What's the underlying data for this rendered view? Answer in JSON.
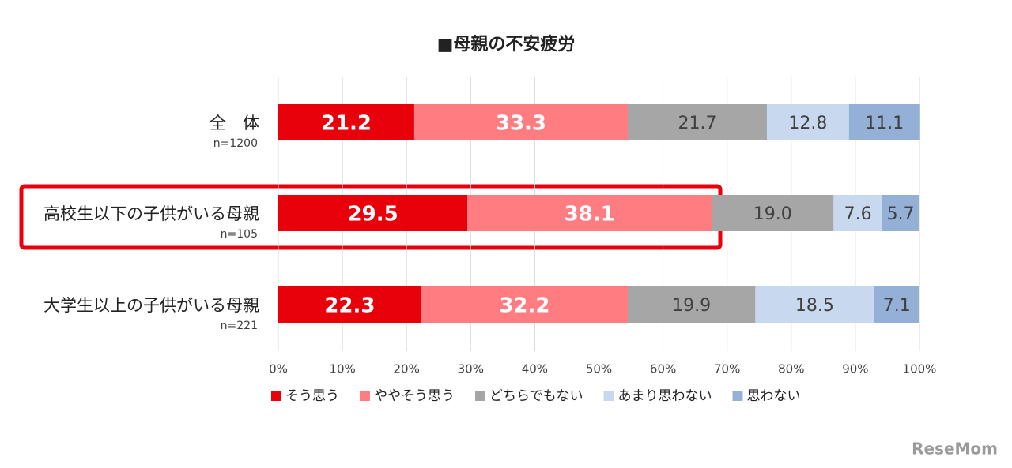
{
  "chart_data": {
    "type": "stacked-bar-horizontal",
    "title": "■母親の不安疲労",
    "categories": [
      "全　体",
      "高校生以下の子供がいる母親",
      "大学生以上の子供がいる母親"
    ],
    "sample_sizes": [
      "n=1200",
      "n=105",
      "n=221"
    ],
    "series": [
      {
        "name": "そう思う",
        "color": "#e8000b",
        "values": [
          21.2,
          29.5,
          22.3
        ]
      },
      {
        "name": "ややそう思う",
        "color": "#ff7c80",
        "values": [
          33.3,
          38.1,
          32.2
        ]
      },
      {
        "name": "どちらでもない",
        "color": "#a6a6a6",
        "values": [
          21.7,
          19,
          19.9
        ],
        "value_labels": [
          "21.7",
          "19.0",
          "19.9"
        ]
      },
      {
        "name": "あまり思わない",
        "color": "#c8d8ee",
        "values": [
          12.8,
          7.6,
          18.5
        ]
      },
      {
        "name": "思わない",
        "color": "#95b0d6",
        "values": [
          11.1,
          5.7,
          7.1
        ]
      }
    ],
    "xlim": [
      0,
      100
    ],
    "xticks": [
      {
        "value": 0,
        "label": "0%"
      },
      {
        "value": 10,
        "label": "10%"
      },
      {
        "value": 20,
        "label": "20%"
      },
      {
        "value": 30,
        "label": "30%"
      },
      {
        "value": 40,
        "label": "40%"
      },
      {
        "value": 50,
        "label": "50%"
      },
      {
        "value": 60,
        "label": "60%"
      },
      {
        "value": 70,
        "label": "70%"
      },
      {
        "value": 80,
        "label": "80%"
      },
      {
        "value": 90,
        "label": "90%"
      },
      {
        "value": 100,
        "label": "100%"
      }
    ],
    "grid": true,
    "legend": "bottom",
    "watermark": "ReseMom"
  }
}
